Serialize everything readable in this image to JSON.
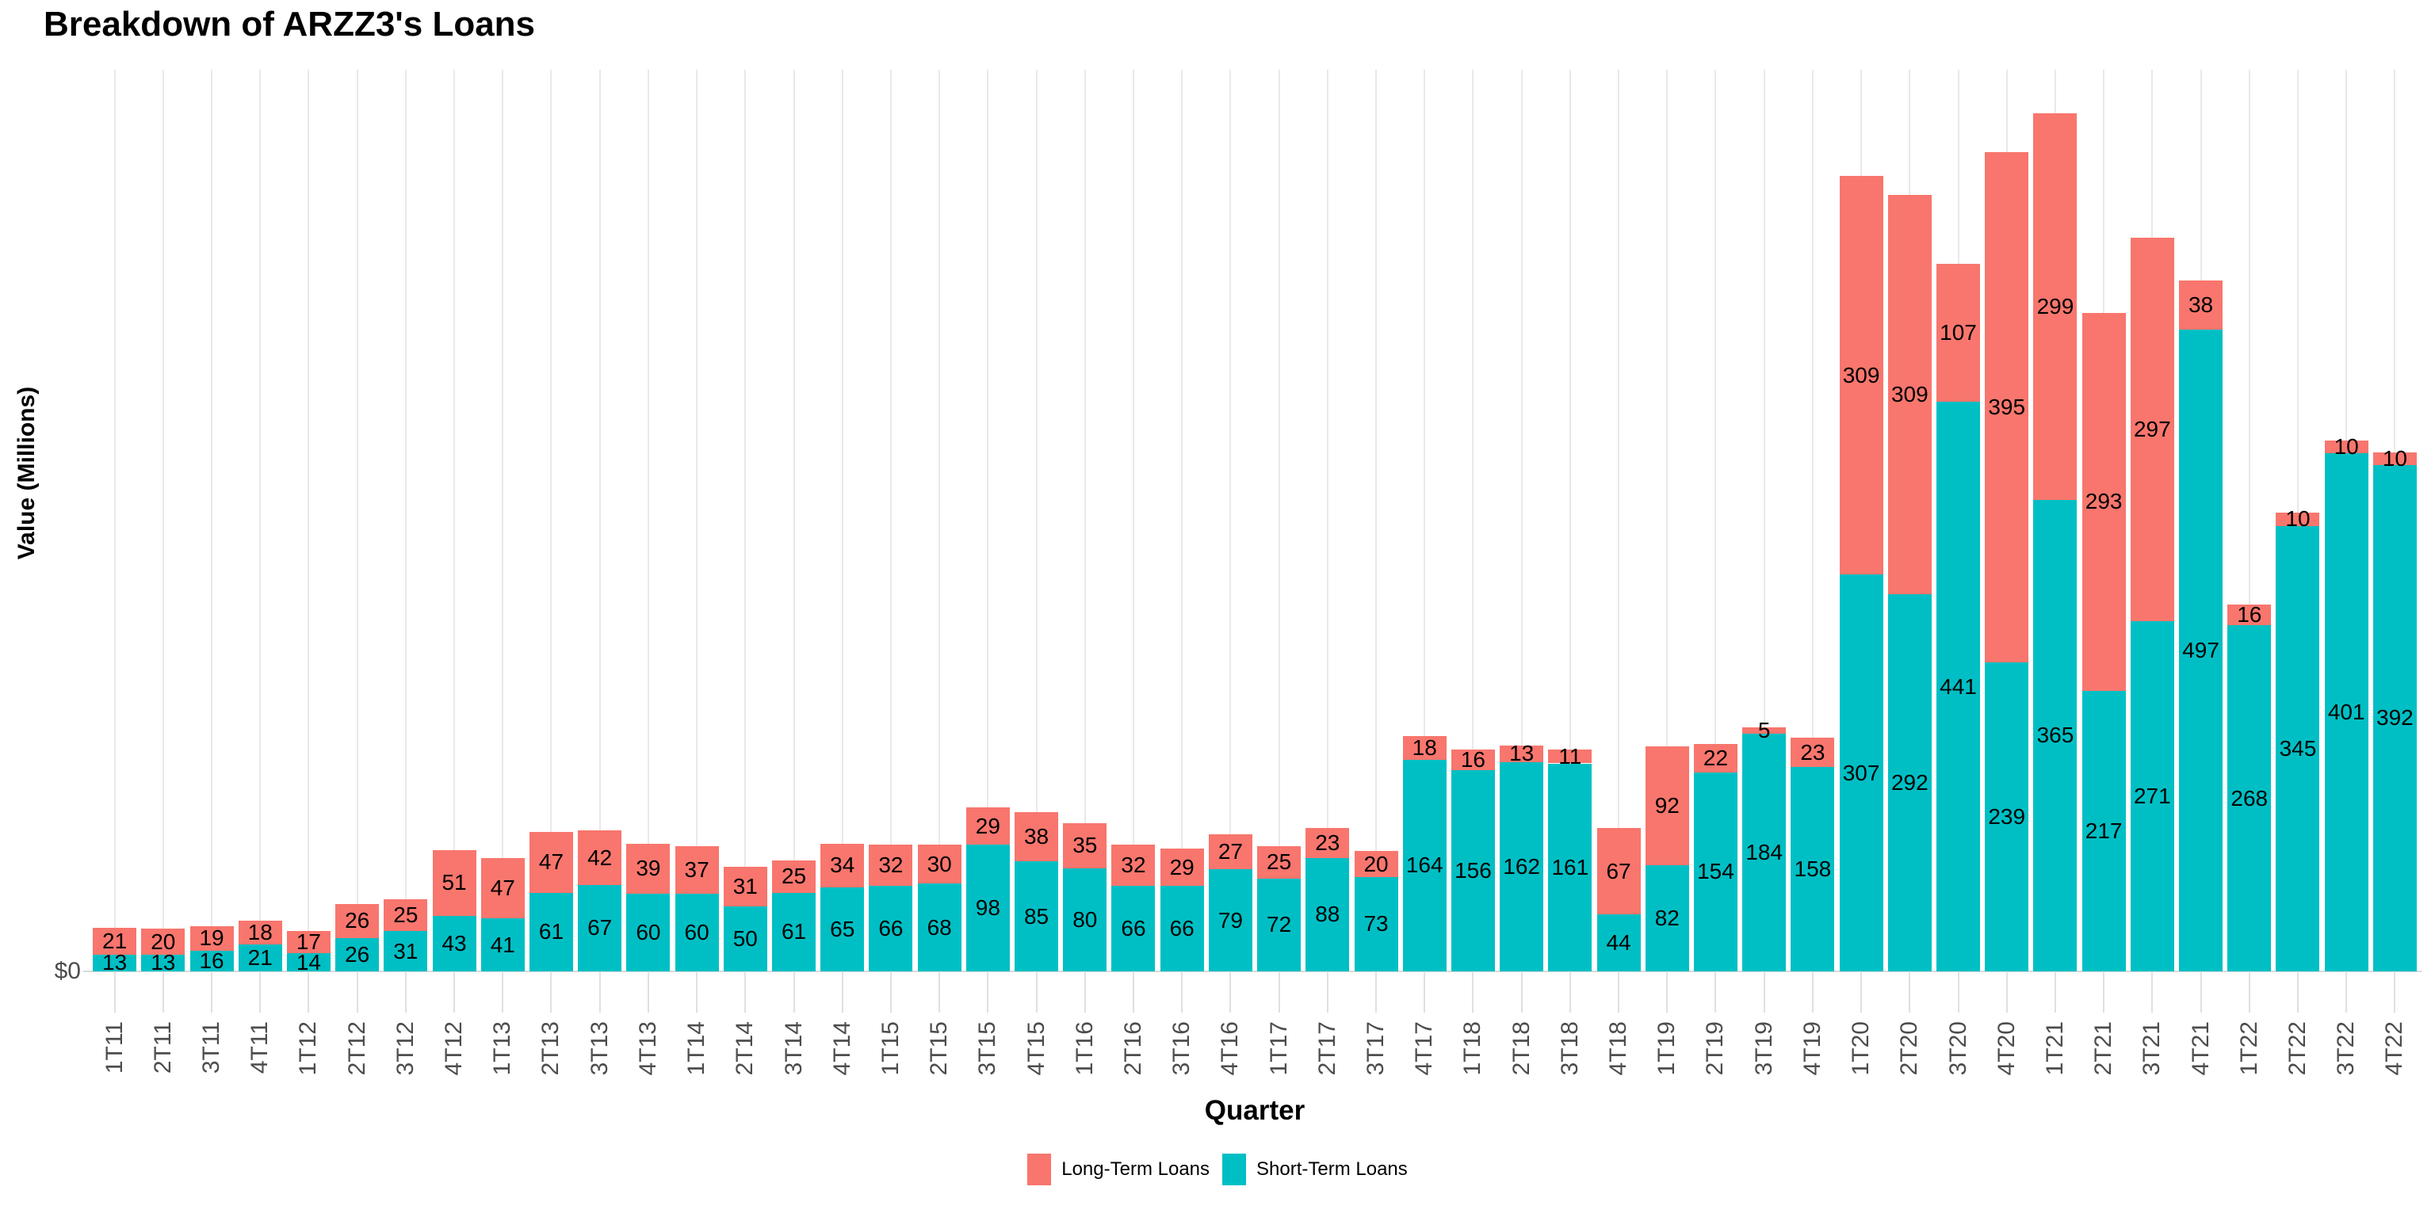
{
  "title": "Breakdown of ARZZ3's Loans",
  "axes": {
    "y_label": "Value (Millions)",
    "x_label": "Quarter",
    "y_tick_zero": "$0"
  },
  "legend": {
    "long_term": "Long-Term Loans",
    "short_term": "Short-Term Loans"
  },
  "colors": {
    "long_term": "#F8766D",
    "short_term": "#00BFC4",
    "gridline": "#E9E9E9",
    "axis_text": "#4D4D4D",
    "bar_label": "#000000"
  },
  "chart_data": {
    "type": "bar",
    "stacked": true,
    "title": "Breakdown of ARZZ3's Loans",
    "xlabel": "Quarter",
    "ylabel": "Value (Millions)",
    "ylim": [
      0,
      698
    ],
    "grid": "vertical-only",
    "legend_position": "bottom",
    "value_labels": "centered-in-segment",
    "categories": [
      "1T11",
      "2T11",
      "3T11",
      "4T11",
      "1T12",
      "2T12",
      "3T12",
      "4T12",
      "1T13",
      "2T13",
      "3T13",
      "4T13",
      "1T14",
      "2T14",
      "3T14",
      "4T14",
      "1T15",
      "2T15",
      "3T15",
      "4T15",
      "1T16",
      "2T16",
      "3T16",
      "4T16",
      "1T17",
      "2T17",
      "3T17",
      "4T17",
      "1T18",
      "2T18",
      "3T18",
      "4T18",
      "1T19",
      "2T19",
      "3T19",
      "4T19",
      "1T20",
      "2T20",
      "3T20",
      "4T20",
      "1T21",
      "2T21",
      "3T21",
      "4T21",
      "1T22",
      "2T22",
      "3T22",
      "4T22"
    ],
    "series": [
      {
        "name": "Long-Term Loans",
        "color": "#F8766D",
        "values": [
          21,
          20,
          19,
          18,
          17,
          26,
          25,
          51,
          47,
          47,
          42,
          39,
          37,
          31,
          25,
          34,
          32,
          30,
          29,
          38,
          35,
          32,
          29,
          27,
          25,
          23,
          20,
          18,
          16,
          13,
          11,
          67,
          92,
          22,
          5,
          23,
          309,
          309,
          107,
          395,
          299,
          293,
          297,
          38,
          16,
          10,
          10,
          10
        ]
      },
      {
        "name": "Short-Term Loans",
        "color": "#00BFC4",
        "values": [
          13,
          13,
          16,
          21,
          14,
          26,
          31,
          43,
          41,
          61,
          67,
          60,
          60,
          50,
          61,
          65,
          66,
          68,
          98,
          85,
          80,
          66,
          66,
          79,
          72,
          88,
          73,
          164,
          156,
          162,
          161,
          44,
          82,
          154,
          184,
          158,
          307,
          292,
          441,
          239,
          365,
          217,
          271,
          497,
          268,
          345,
          401,
          392
        ]
      }
    ]
  }
}
